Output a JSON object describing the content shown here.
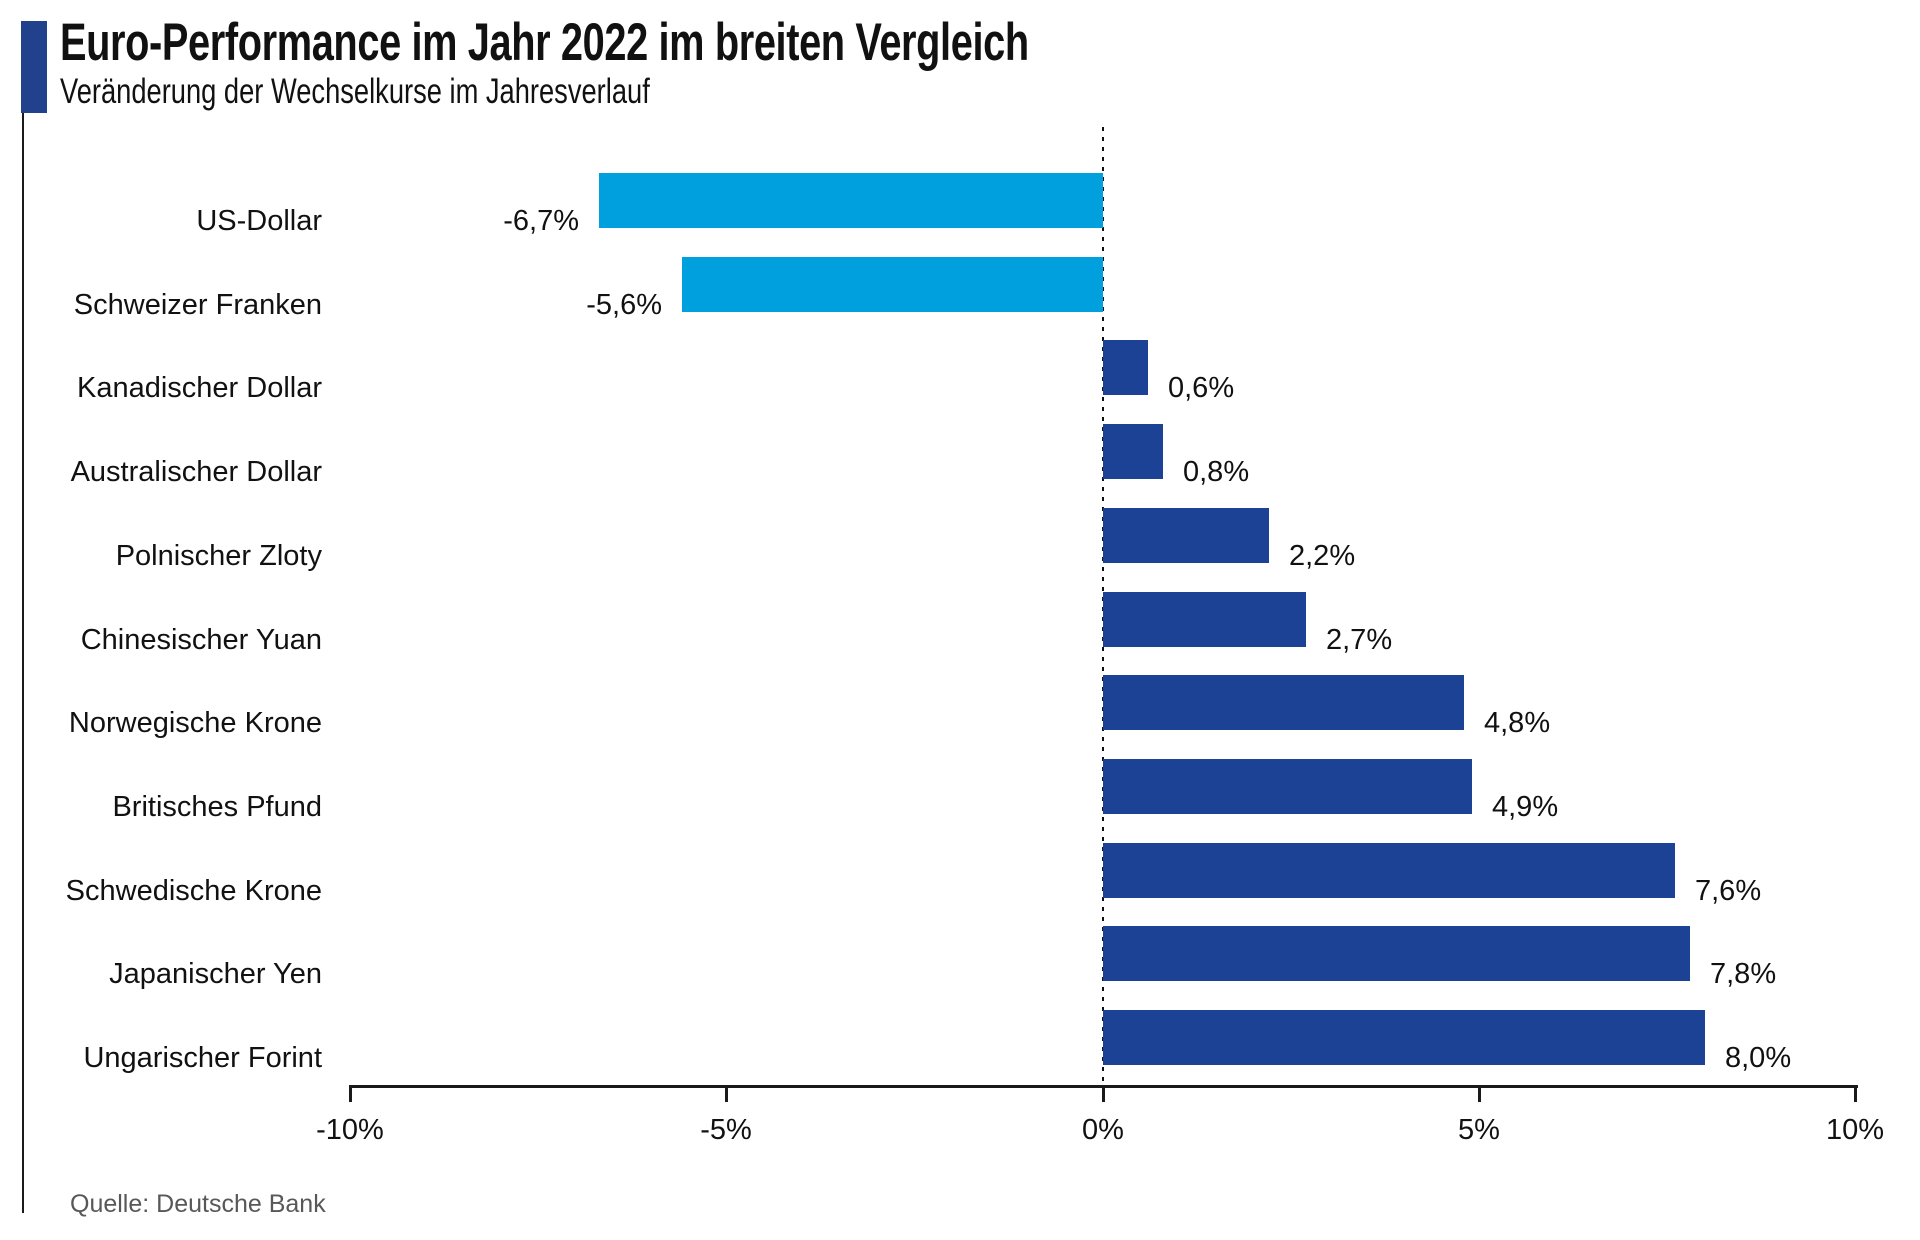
{
  "header": {
    "title": "Euro-Performance im Jahr 2022 im breiten Vergleich",
    "subtitle": "Veränderung der Wechselkurse im Jahresverlauf"
  },
  "source": "Quelle: Deutsche Bank",
  "chart_data": {
    "type": "bar",
    "orientation": "horizontal",
    "title": "Euro-Performance im Jahr 2022 im breiten Vergleich",
    "subtitle": "Veränderung der Wechselkurse im Jahresverlauf",
    "categories": [
      "US-Dollar",
      "Schweizer Franken",
      "Kanadischer Dollar",
      "Australischer Dollar",
      "Polnischer Zloty",
      "Chinesischer Yuan",
      "Norwegische Krone",
      "Britisches Pfund",
      "Schwedische Krone",
      "Japanischer Yen",
      "Ungarischer Forint"
    ],
    "values": [
      -6.7,
      -5.6,
      0.6,
      0.8,
      2.2,
      2.7,
      4.8,
      4.9,
      7.6,
      7.8,
      8.0
    ],
    "value_labels": [
      "-6,7%",
      "-5,6%",
      "0,6%",
      "0,8%",
      "2,2%",
      "2,7%",
      "4,8%",
      "4,9%",
      "7,6%",
      "7,8%",
      "8,0%"
    ],
    "xlabel": "",
    "ylabel": "",
    "xlim": [
      -10,
      10
    ],
    "x_ticks": [
      -10,
      -5,
      0,
      5,
      10
    ],
    "x_tick_labels": [
      "-10%",
      "-5%",
      "0%",
      "5%",
      "10%"
    ],
    "grid": false,
    "legend": "none",
    "zero_line_style": "dotted",
    "colors": {
      "positive_bar": "#1C4296",
      "negative_bar": "#009FDE",
      "accent_rect": "#21418D",
      "axis": "#1a1a1a",
      "text": "#111111",
      "source_text": "#58585a"
    }
  }
}
